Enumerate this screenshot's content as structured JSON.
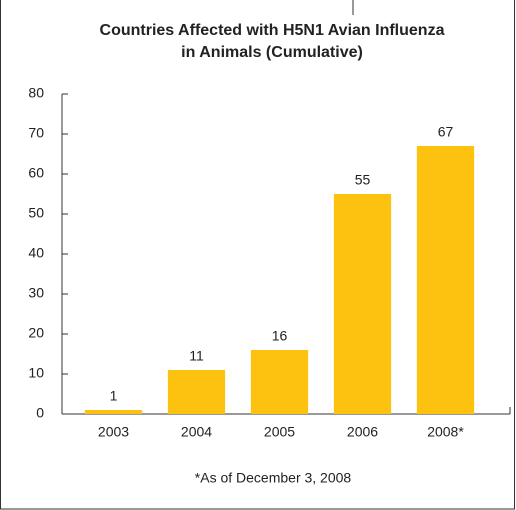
{
  "chart_data": {
    "type": "bar",
    "title": [
      "Countries Affected with H5N1 Avian Influenza",
      "in Animals (Cumulative)"
    ],
    "categories": [
      "2003",
      "2004",
      "2005",
      "2006",
      "2008*"
    ],
    "values": [
      1,
      11,
      16,
      55,
      67
    ],
    "color": "#fcc20f",
    "ylim": [
      0,
      80
    ],
    "yticks": [
      0,
      10,
      20,
      30,
      40,
      50,
      60,
      70,
      80
    ],
    "grid": false,
    "note": "*As of December 3, 2008"
  }
}
